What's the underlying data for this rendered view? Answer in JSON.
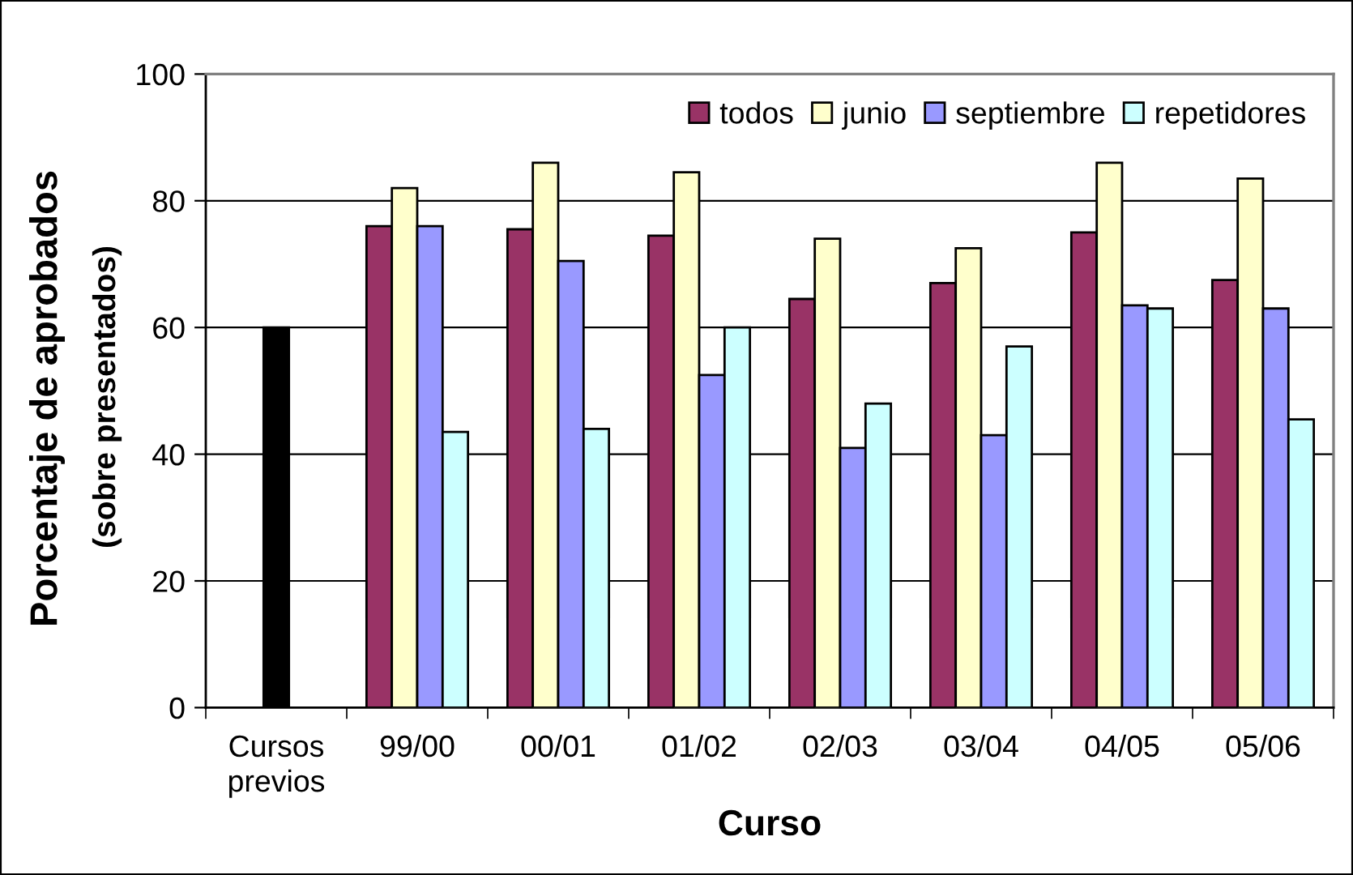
{
  "chart_data": {
    "type": "bar",
    "xlabel": "Curso",
    "ylabel": "Porcentaje de aprobados\n(sobre presentados)",
    "categories": [
      "Cursos\nprevios",
      "99/00",
      "00/01",
      "01/02",
      "02/03",
      "03/04",
      "04/05",
      "05/06"
    ],
    "series": [
      {
        "color": "#000000",
        "values": [
          60,
          null,
          null,
          null,
          null,
          null,
          null,
          null
        ]
      },
      {
        "name": "todos",
        "color": "#993366",
        "values": [
          null,
          76,
          75.5,
          74.5,
          64.5,
          67,
          75,
          67.5
        ]
      },
      {
        "name": "junio",
        "color": "#ffffcc",
        "values": [
          null,
          82,
          86,
          84.5,
          74,
          72.5,
          86,
          83.5
        ]
      },
      {
        "name": "septiembre",
        "color": "#9999ff",
        "values": [
          null,
          76,
          70.5,
          52.5,
          41,
          43,
          63.5,
          63
        ]
      },
      {
        "name": "repetidores",
        "color": "#ccffff",
        "values": [
          null,
          43.5,
          44,
          60,
          48,
          57,
          63,
          45.5
        ]
      }
    ],
    "ylim": [
      0,
      100
    ],
    "yticks": [
      0,
      20,
      40,
      60,
      80,
      100
    ],
    "grid": "y",
    "legend": "top right"
  }
}
